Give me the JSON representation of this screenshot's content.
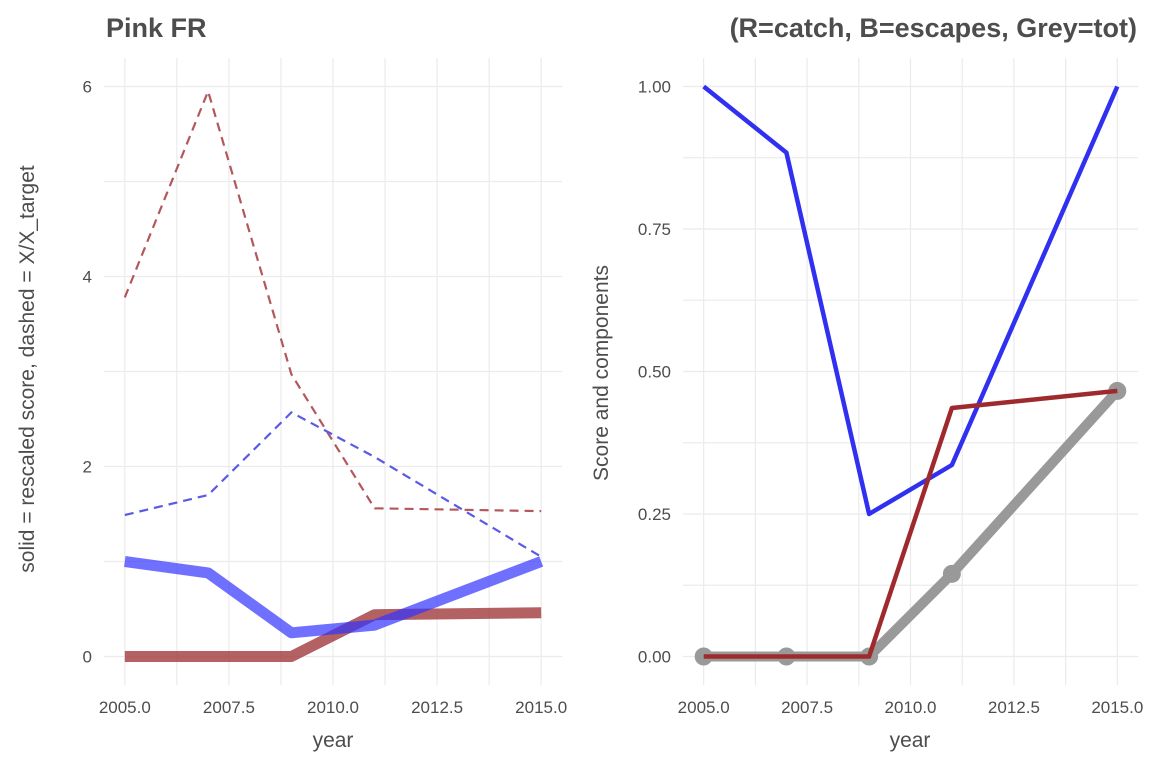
{
  "chart_data": [
    {
      "type": "line",
      "title": "Pink FR",
      "xlabel": "year",
      "ylabel": "solid = rescaled score, dashed = X/X_target",
      "xlim": [
        2004.5,
        2015.5
      ],
      "ylim": [
        -0.3,
        6.3
      ],
      "xticks": [
        "2005.0",
        "2007.5",
        "2010.0",
        "2012.5",
        "2015.0"
      ],
      "xtick_values": [
        2005,
        2007.5,
        2010,
        2012.5,
        2015
      ],
      "yticks": [
        "0",
        "2",
        "4",
        "6"
      ],
      "ytick_values": [
        0,
        2,
        4,
        6
      ],
      "grid": true,
      "series": [
        {
          "x": [
            2005,
            2007,
            2009,
            2011,
            2015
          ],
          "y": [
            3.78,
            5.95,
            2.97,
            1.56,
            1.53
          ],
          "color": "#b2585a",
          "style": "dashed",
          "width": 2.2
        },
        {
          "x": [
            2005,
            2007,
            2009,
            2011,
            2015
          ],
          "y": [
            1.49,
            1.7,
            2.57,
            2.1,
            1.05
          ],
          "color": "#5a5ae6",
          "style": "dashed",
          "width": 2.2
        },
        {
          "x": [
            2005,
            2007,
            2009,
            2011,
            2015
          ],
          "y": [
            0.0,
            0.0,
            0.0,
            0.44,
            0.46
          ],
          "color": "#a0393c",
          "style": "solid",
          "width": 11,
          "opacity": 0.8
        },
        {
          "x": [
            2005,
            2007,
            2009,
            2011,
            2015
          ],
          "y": [
            1.0,
            0.88,
            0.25,
            0.33,
            1.0
          ],
          "color": "#3333ff",
          "style": "solid",
          "width": 11,
          "opacity": 0.7
        }
      ]
    },
    {
      "type": "line",
      "title": "(R=catch, B=escapes, Grey=tot)",
      "xlabel": "year",
      "ylabel": "Score and components",
      "xlim": [
        2004.5,
        2015.5
      ],
      "ylim": [
        -0.05,
        1.05
      ],
      "xticks": [
        "2005.0",
        "2007.5",
        "2010.0",
        "2012.5",
        "2015.0"
      ],
      "xtick_values": [
        2005,
        2007.5,
        2010,
        2012.5,
        2015
      ],
      "yticks": [
        "0.00",
        "0.25",
        "0.50",
        "0.75",
        "1.00"
      ],
      "ytick_values": [
        0,
        0.25,
        0.5,
        0.75,
        1.0
      ],
      "grid": true,
      "series": [
        {
          "x": [
            2005,
            2007,
            2009,
            2011,
            2015
          ],
          "y": [
            0.0,
            0.0,
            0.0,
            0.145,
            0.466
          ],
          "color": "#999999",
          "style": "solid",
          "width": 10,
          "markers": true
        },
        {
          "x": [
            2005,
            2007,
            2009,
            2011,
            2015
          ],
          "y": [
            1.0,
            0.884,
            0.25,
            0.336,
            1.0
          ],
          "color": "#3030f0",
          "style": "solid",
          "width": 4.5
        },
        {
          "x": [
            2005,
            2007,
            2009,
            2011,
            2015
          ],
          "y": [
            0.0,
            0.0,
            0.0,
            0.436,
            0.466
          ],
          "color": "#9e2a2e",
          "style": "solid",
          "width": 4.5
        }
      ]
    }
  ]
}
